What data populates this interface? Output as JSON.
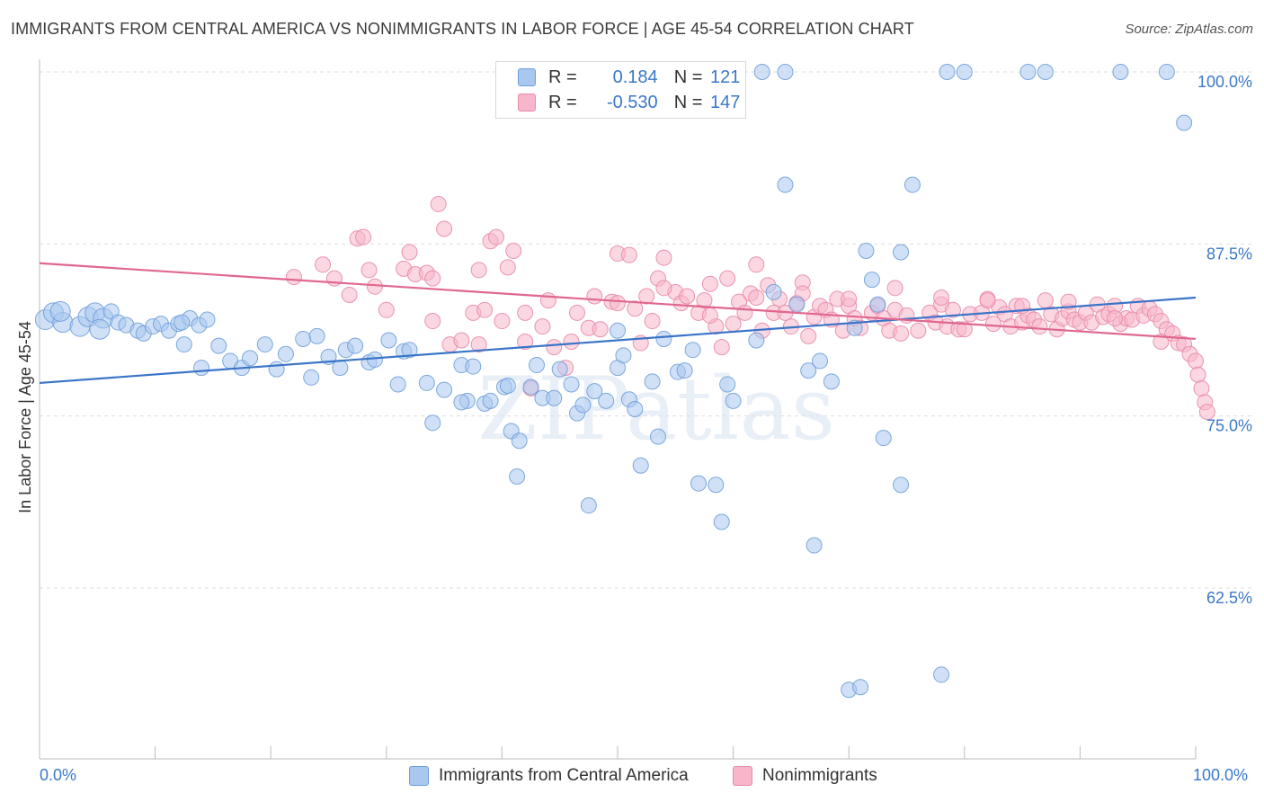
{
  "title": "IMMIGRANTS FROM CENTRAL AMERICA VS NONIMMIGRANTS IN LABOR FORCE | AGE 45-54 CORRELATION CHART",
  "source": "Source: ZipAtlas.com",
  "watermark": "ZIPatlas",
  "legend_stats": [
    {
      "r_label": "R =",
      "r_value": "0.184",
      "n_label": "N =",
      "n_value": "121",
      "color": "#a9c8f0"
    },
    {
      "r_label": "R =",
      "r_value": "-0.530",
      "n_label": "N =",
      "n_value": "147",
      "color": "#f7b6ca"
    }
  ],
  "colors": {
    "blue_fill": "#a9c8f0",
    "blue_stroke": "#6f9fd8",
    "blue_line": "#3a74c8",
    "pink_fill": "#f7b6ca",
    "pink_stroke": "#e88aa8",
    "pink_line": "#e0678f",
    "tick_label": "#3a78c9",
    "grid": "#dddddd"
  },
  "chart_data": {
    "type": "scatter",
    "title": "IMMIGRANTS FROM CENTRAL AMERICA VS NONIMMIGRANTS IN LABOR FORCE | AGE 45-54 CORRELATION CHART",
    "xlabel": "",
    "ylabel": "In Labor Force | Age 45-54",
    "xlim": [
      0,
      100
    ],
    "ylim": [
      52,
      101
    ],
    "y_ticks": [
      62.5,
      75.0,
      87.5,
      100.0
    ],
    "y_tick_labels": [
      "62.5%",
      "75.0%",
      "87.5%",
      "100.0%"
    ],
    "x_tick_labels": [
      "0.0%",
      "100.0%"
    ],
    "grid": true,
    "legend_placement": "bottom-center",
    "series": [
      {
        "name": "Immigrants from Central America",
        "color": "#a9c8f0",
        "trend": {
          "x0": 0,
          "y0": 77.4,
          "x1": 100,
          "y1": 83.6
        },
        "points": [
          [
            0.5,
            82.0
          ],
          [
            1.2,
            82.5
          ],
          [
            2.0,
            81.8
          ],
          [
            1.8,
            82.6
          ],
          [
            3.5,
            81.5
          ],
          [
            4.2,
            82.2
          ],
          [
            4.8,
            82.5
          ],
          [
            5.5,
            82.1
          ],
          [
            6.2,
            82.6
          ],
          [
            5.2,
            81.3
          ],
          [
            6.8,
            81.8
          ],
          [
            7.5,
            81.6
          ],
          [
            8.5,
            81.2
          ],
          [
            9.0,
            81.0
          ],
          [
            9.8,
            81.5
          ],
          [
            10.5,
            81.7
          ],
          [
            11.2,
            81.2
          ],
          [
            12.0,
            81.7
          ],
          [
            13.0,
            82.1
          ],
          [
            12.3,
            81.8
          ],
          [
            12.5,
            80.2
          ],
          [
            13.8,
            81.6
          ],
          [
            14.5,
            82.0
          ],
          [
            15.5,
            80.1
          ],
          [
            14.0,
            78.5
          ],
          [
            16.5,
            79.0
          ],
          [
            17.5,
            78.5
          ],
          [
            18.2,
            79.2
          ],
          [
            19.5,
            80.2
          ],
          [
            20.5,
            78.4
          ],
          [
            21.3,
            79.5
          ],
          [
            22.8,
            80.6
          ],
          [
            23.5,
            77.8
          ],
          [
            24.0,
            80.8
          ],
          [
            25.0,
            79.3
          ],
          [
            26.0,
            78.5
          ],
          [
            26.5,
            79.8
          ],
          [
            27.3,
            80.1
          ],
          [
            28.5,
            78.9
          ],
          [
            29.0,
            79.1
          ],
          [
            30.2,
            80.5
          ],
          [
            31.0,
            77.3
          ],
          [
            31.5,
            79.7
          ],
          [
            32.0,
            79.8
          ],
          [
            33.5,
            77.4
          ],
          [
            34.0,
            74.5
          ],
          [
            35.0,
            76.9
          ],
          [
            36.5,
            78.7
          ],
          [
            37.0,
            76.1
          ],
          [
            37.5,
            78.6
          ],
          [
            38.5,
            75.9
          ],
          [
            39.0,
            76.1
          ],
          [
            40.2,
            77.1
          ],
          [
            40.5,
            77.2
          ],
          [
            40.8,
            73.9
          ],
          [
            41.5,
            73.2
          ],
          [
            41.3,
            70.6
          ],
          [
            42.5,
            77.1
          ],
          [
            43.0,
            78.7
          ],
          [
            43.5,
            76.3
          ],
          [
            44.5,
            76.3
          ],
          [
            45.0,
            78.4
          ],
          [
            46.0,
            77.3
          ],
          [
            46.5,
            75.2
          ],
          [
            47.0,
            75.8
          ],
          [
            47.5,
            68.5
          ],
          [
            48.0,
            76.8
          ],
          [
            49.0,
            76.1
          ],
          [
            50.0,
            78.5
          ],
          [
            50.5,
            79.4
          ],
          [
            51.0,
            76.2
          ],
          [
            51.5,
            75.5
          ],
          [
            52.0,
            71.4
          ],
          [
            53.0,
            77.5
          ],
          [
            53.5,
            73.5
          ],
          [
            54.0,
            80.6
          ],
          [
            55.2,
            78.2
          ],
          [
            55.8,
            78.3
          ],
          [
            56.5,
            79.8
          ],
          [
            57.0,
            70.1
          ],
          [
            58.5,
            70.0
          ],
          [
            59.0,
            67.3
          ],
          [
            59.5,
            77.3
          ],
          [
            60.0,
            76.1
          ],
          [
            62.0,
            80.5
          ],
          [
            63.5,
            84.0
          ],
          [
            64.5,
            91.8
          ],
          [
            65.5,
            83.1
          ],
          [
            66.5,
            78.3
          ],
          [
            67.0,
            65.6
          ],
          [
            67.5,
            79.0
          ],
          [
            68.5,
            77.5
          ],
          [
            70.0,
            55.1
          ],
          [
            70.5,
            81.4
          ],
          [
            71.0,
            55.3
          ],
          [
            71.5,
            87.0
          ],
          [
            72.0,
            84.9
          ],
          [
            72.5,
            83.1
          ],
          [
            73.0,
            73.4
          ],
          [
            74.5,
            86.9
          ],
          [
            74.5,
            70.0
          ],
          [
            75.5,
            91.8
          ],
          [
            78.0,
            56.2
          ],
          [
            80.0,
            100.0
          ],
          [
            78.5,
            100.0
          ],
          [
            85.5,
            100.0
          ],
          [
            87.0,
            100.0
          ],
          [
            93.5,
            100.0
          ],
          [
            97.5,
            100.0
          ],
          [
            99.0,
            96.3
          ],
          [
            62.5,
            100.0
          ],
          [
            64.5,
            100.0
          ],
          [
            50.0,
            81.2
          ],
          [
            36.5,
            76.0
          ]
        ]
      },
      {
        "name": "Nonimmigrants",
        "color": "#f7b6ca",
        "trend": {
          "x0": 0,
          "y0": 86.1,
          "x1": 100,
          "y1": 80.6
        },
        "points": [
          [
            22.0,
            85.1
          ],
          [
            24.5,
            86.0
          ],
          [
            25.5,
            85.0
          ],
          [
            26.8,
            83.8
          ],
          [
            27.5,
            87.9
          ],
          [
            28.0,
            88.0
          ],
          [
            28.5,
            85.6
          ],
          [
            29.0,
            84.4
          ],
          [
            30.0,
            82.7
          ],
          [
            31.5,
            85.7
          ],
          [
            32.0,
            86.9
          ],
          [
            32.5,
            85.3
          ],
          [
            33.5,
            85.4
          ],
          [
            34.0,
            81.9
          ],
          [
            34.5,
            90.4
          ],
          [
            35.0,
            88.6
          ],
          [
            35.5,
            80.2
          ],
          [
            36.5,
            80.5
          ],
          [
            37.5,
            82.5
          ],
          [
            38.0,
            85.6
          ],
          [
            38.5,
            82.7
          ],
          [
            39.0,
            87.7
          ],
          [
            39.5,
            88.0
          ],
          [
            40.0,
            81.9
          ],
          [
            40.5,
            85.8
          ],
          [
            41.0,
            87.0
          ],
          [
            42.0,
            80.4
          ],
          [
            42.5,
            77.0
          ],
          [
            43.5,
            81.5
          ],
          [
            44.0,
            83.4
          ],
          [
            44.5,
            80.0
          ],
          [
            45.5,
            78.5
          ],
          [
            46.5,
            82.5
          ],
          [
            47.5,
            81.4
          ],
          [
            48.0,
            83.7
          ],
          [
            48.5,
            81.3
          ],
          [
            49.5,
            83.3
          ],
          [
            50.0,
            86.8
          ],
          [
            51.0,
            86.7
          ],
          [
            51.5,
            82.8
          ],
          [
            52.0,
            80.3
          ],
          [
            52.5,
            83.7
          ],
          [
            53.0,
            81.9
          ],
          [
            53.5,
            85.0
          ],
          [
            54.0,
            86.5
          ],
          [
            55.0,
            84.0
          ],
          [
            55.5,
            83.2
          ],
          [
            56.0,
            83.7
          ],
          [
            57.0,
            82.5
          ],
          [
            57.5,
            83.4
          ],
          [
            58.0,
            84.6
          ],
          [
            58.5,
            81.5
          ],
          [
            59.0,
            80.0
          ],
          [
            59.5,
            85.0
          ],
          [
            60.0,
            81.7
          ],
          [
            60.5,
            83.3
          ],
          [
            61.0,
            82.5
          ],
          [
            61.5,
            83.9
          ],
          [
            62.0,
            86.0
          ],
          [
            62.5,
            81.2
          ],
          [
            63.0,
            84.5
          ],
          [
            63.5,
            82.5
          ],
          [
            64.0,
            83.5
          ],
          [
            64.5,
            82.5
          ],
          [
            65.0,
            81.5
          ],
          [
            65.5,
            83.2
          ],
          [
            66.0,
            84.7
          ],
          [
            66.5,
            80.8
          ],
          [
            67.0,
            82.2
          ],
          [
            67.5,
            83.0
          ],
          [
            68.0,
            82.7
          ],
          [
            68.5,
            82.0
          ],
          [
            69.0,
            83.5
          ],
          [
            69.5,
            81.2
          ],
          [
            70.0,
            83.0
          ],
          [
            70.5,
            82.1
          ],
          [
            71.0,
            81.4
          ],
          [
            72.0,
            82.5
          ],
          [
            72.5,
            83.0
          ],
          [
            73.0,
            82.1
          ],
          [
            73.5,
            81.2
          ],
          [
            74.0,
            82.7
          ],
          [
            74.5,
            81.0
          ],
          [
            75.0,
            82.3
          ],
          [
            76.0,
            81.2
          ],
          [
            77.0,
            82.5
          ],
          [
            77.5,
            81.8
          ],
          [
            78.0,
            83.1
          ],
          [
            78.5,
            81.5
          ],
          [
            79.0,
            82.7
          ],
          [
            79.5,
            81.3
          ],
          [
            80.0,
            81.3
          ],
          [
            80.5,
            82.4
          ],
          [
            81.5,
            82.5
          ],
          [
            82.0,
            83.5
          ],
          [
            82.5,
            81.7
          ],
          [
            83.0,
            82.9
          ],
          [
            83.5,
            82.4
          ],
          [
            84.0,
            81.5
          ],
          [
            84.5,
            83.0
          ],
          [
            85.0,
            81.8
          ],
          [
            85.5,
            82.3
          ],
          [
            86.0,
            82.0
          ],
          [
            86.5,
            81.5
          ],
          [
            87.0,
            83.4
          ],
          [
            87.5,
            82.4
          ],
          [
            88.0,
            81.3
          ],
          [
            88.5,
            82.1
          ],
          [
            89.0,
            82.6
          ],
          [
            89.5,
            82.0
          ],
          [
            90.0,
            81.8
          ],
          [
            90.5,
            82.5
          ],
          [
            91.0,
            81.8
          ],
          [
            91.5,
            83.1
          ],
          [
            92.0,
            82.2
          ],
          [
            92.5,
            82.4
          ],
          [
            93.0,
            83.0
          ],
          [
            93.5,
            81.7
          ],
          [
            94.0,
            82.1
          ],
          [
            94.5,
            82.0
          ],
          [
            95.0,
            83.0
          ],
          [
            95.5,
            82.3
          ],
          [
            96.0,
            82.8
          ],
          [
            96.5,
            82.4
          ],
          [
            97.0,
            81.9
          ],
          [
            97.5,
            81.3
          ],
          [
            98.0,
            81.0
          ],
          [
            98.5,
            80.3
          ],
          [
            99.0,
            80.2
          ],
          [
            99.5,
            79.5
          ],
          [
            100.0,
            79.0
          ],
          [
            100.2,
            78.0
          ],
          [
            100.5,
            77.0
          ],
          [
            100.8,
            76.0
          ],
          [
            101.0,
            75.3
          ],
          [
            97.0,
            80.4
          ],
          [
            93.0,
            82.1
          ],
          [
            89.0,
            83.3
          ],
          [
            85.0,
            83.0
          ],
          [
            82.0,
            83.4
          ],
          [
            78.0,
            83.6
          ],
          [
            74.0,
            84.3
          ],
          [
            70.0,
            83.5
          ],
          [
            66.0,
            83.9
          ],
          [
            62.0,
            83.6
          ],
          [
            58.0,
            82.3
          ],
          [
            54.0,
            84.3
          ],
          [
            50.0,
            83.2
          ],
          [
            46.0,
            80.4
          ],
          [
            42.0,
            82.5
          ],
          [
            38.0,
            80.2
          ],
          [
            34.0,
            85.0
          ]
        ]
      }
    ]
  }
}
